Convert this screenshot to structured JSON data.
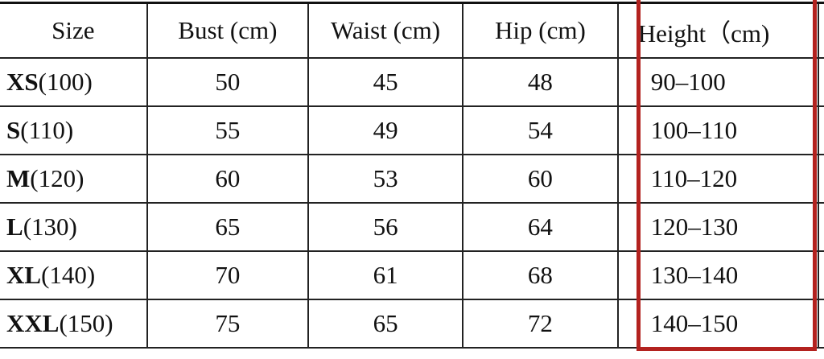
{
  "table": {
    "headers": [
      "Size",
      "Bust (cm)",
      "Waist (cm)",
      "Hip (cm)",
      "Height（cm)"
    ],
    "rows": [
      {
        "size": "XS",
        "height_label": "(100)",
        "bust": "50",
        "waist": "45",
        "hip": "48",
        "height": "90–100"
      },
      {
        "size": "S",
        "height_label": "(110)",
        "bust": "55",
        "waist": "49",
        "hip": "54",
        "height": "100–110"
      },
      {
        "size": "M",
        "height_label": "(120)",
        "bust": "60",
        "waist": "53",
        "hip": "60",
        "height": "110–120"
      },
      {
        "size": "L",
        "height_label": "(130)",
        "bust": "65",
        "waist": "56",
        "hip": "64",
        "height": "120–130"
      },
      {
        "size": "XL",
        "height_label": "(140)",
        "bust": "70",
        "waist": "61",
        "hip": "68",
        "height": "130–140"
      },
      {
        "size": "XXL",
        "height_label": "(150)",
        "bust": "75",
        "waist": "65",
        "hip": "72",
        "height": "140–150"
      }
    ]
  },
  "highlight": {
    "color": "#b3221f",
    "target": "Height column",
    "icon": "arrow-icon"
  }
}
